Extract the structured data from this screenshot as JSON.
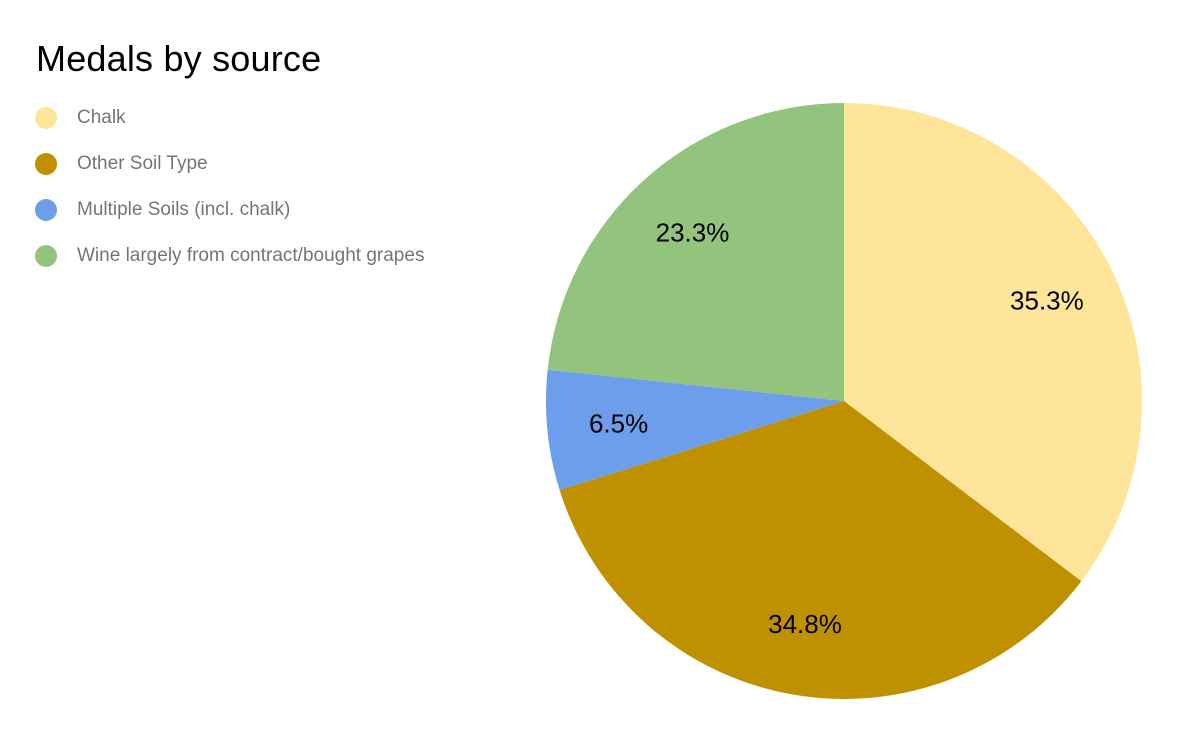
{
  "chart_data": {
    "type": "pie",
    "title": "Medals by source",
    "legend_position": "top-left",
    "start_angle_deg": 0,
    "direction": "clockwise",
    "title_color": "#000000",
    "legend_text_color": "#757575",
    "slice_label_color": "#000000",
    "background_color": "#ffffff",
    "series": [
      {
        "label": "Chalk",
        "value": 35.3,
        "percent_label": "35.3%",
        "color": "#FFE599"
      },
      {
        "label": "Other Soil Type",
        "value": 34.8,
        "percent_label": "34.8%",
        "color": "#BF9000"
      },
      {
        "label": "Multiple Soils (incl. chalk)",
        "value": 6.5,
        "percent_label": "6.5%",
        "color": "#6D9EEB"
      },
      {
        "label": "Wine largely from contract/bought grapes",
        "value": 23.3,
        "percent_label": "23.3%",
        "color": "#93C47D"
      }
    ]
  }
}
